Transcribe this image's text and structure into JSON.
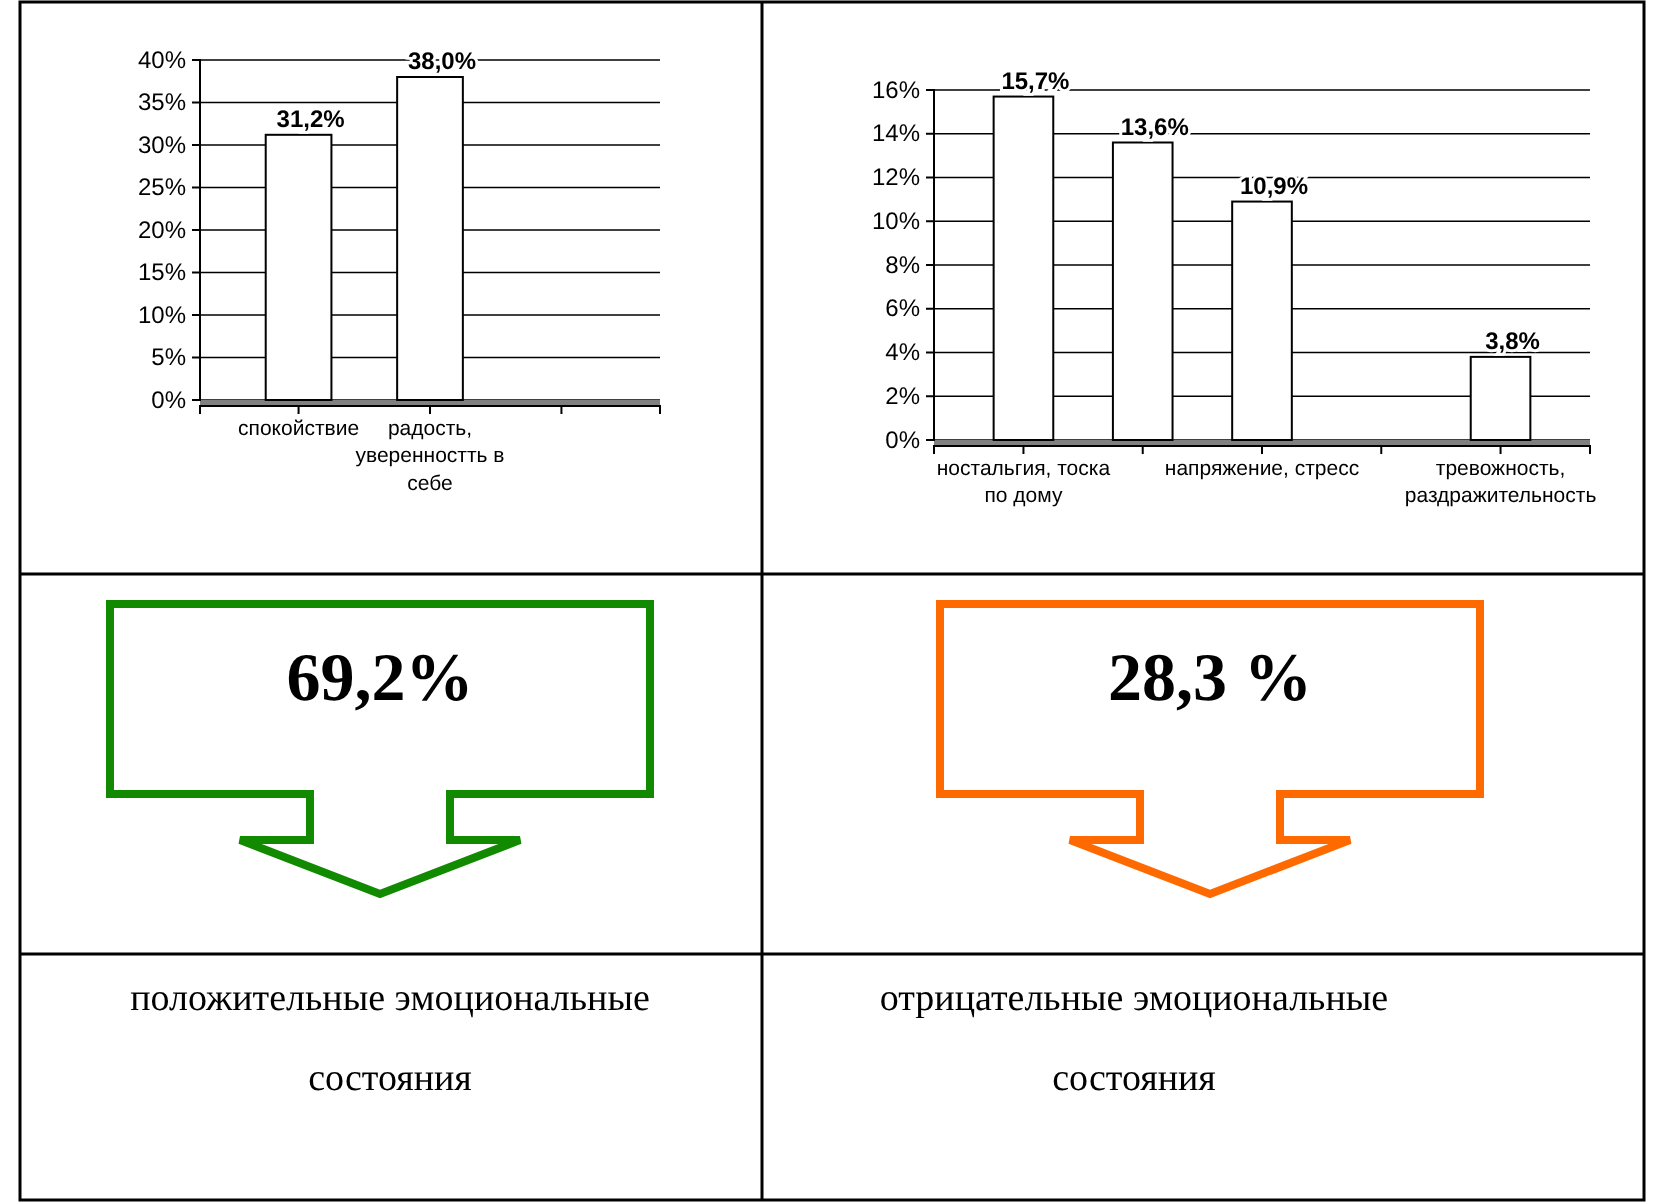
{
  "chart_data": [
    {
      "type": "bar",
      "categories": [
        "спокойствие",
        "радость, уверенностть в себе",
        null
      ],
      "series": [
        {
          "color": "#ffffff",
          "values": [
            31.2,
            38.0,
            null
          ],
          "value_labels": [
            "31,2%",
            "38,0%",
            null
          ]
        }
      ],
      "ylim": [
        0,
        40
      ],
      "yticks": [
        {
          "value": 0,
          "label": "0%"
        },
        {
          "value": 5,
          "label": "5%"
        },
        {
          "value": 10,
          "label": "10%"
        },
        {
          "value": 15,
          "label": "15%"
        },
        {
          "value": 20,
          "label": "20%"
        },
        {
          "value": 25,
          "label": "25%"
        },
        {
          "value": 30,
          "label": "30%"
        },
        {
          "value": 35,
          "label": "35%"
        },
        {
          "value": 40,
          "label": "40%"
        }
      ],
      "grid": "y",
      "annotations": [
        "69,2%",
        "положительные эмоциональные состояния"
      ]
    },
    {
      "type": "bar",
      "categories": [
        "ностальгия, тоска по дому",
        null,
        "напряжение, стресс",
        null,
        "тревожность, раздражительность"
      ],
      "series": [
        {
          "color": "#ffffff",
          "values": [
            15.7,
            13.6,
            10.9,
            null,
            3.8
          ],
          "value_labels": [
            "15,7%",
            "13,6%",
            "10,9%",
            null,
            "3,8%"
          ]
        }
      ],
      "ylim": [
        0,
        16
      ],
      "yticks": [
        {
          "value": 0,
          "label": "0%"
        },
        {
          "value": 2,
          "label": "2%"
        },
        {
          "value": 4,
          "label": "4%"
        },
        {
          "value": 6,
          "label": "6%"
        },
        {
          "value": 8,
          "label": "8%"
        },
        {
          "value": 10,
          "label": "10%"
        },
        {
          "value": 12,
          "label": "12%"
        },
        {
          "value": 14,
          "label": "14%"
        },
        {
          "value": 16,
          "label": "16%"
        }
      ],
      "grid": "y",
      "annotations": [
        "28,3 %",
        "отрицательные эмоциональные состояния"
      ]
    }
  ]
}
